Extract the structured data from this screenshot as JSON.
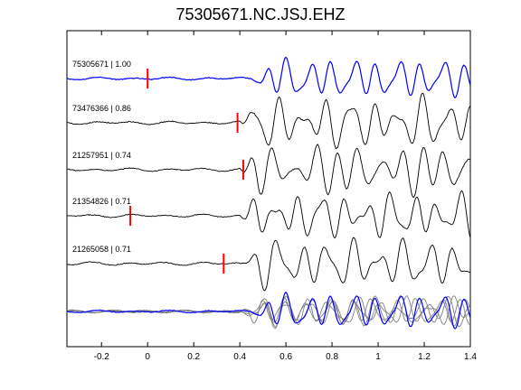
{
  "figure": {
    "title": "75305671.NC.JSJ.EHZ"
  },
  "chart_data": {
    "type": "line",
    "title": "75305671.NC.JSJ.EHZ",
    "xlabel": "",
    "ylabel": "",
    "xlim": [
      -0.35,
      1.4
    ],
    "xticks": [
      -0.2,
      0,
      0.2,
      0.4,
      0.6,
      0.8,
      1,
      1.2,
      1.4
    ],
    "xtick_labels": [
      "-0.2",
      "0",
      "0.2",
      "0.4",
      "0.6",
      "0.8",
      "1",
      "1.2",
      "1.4"
    ],
    "grid": false,
    "colors": {
      "master": "#0000ff",
      "trace": "#000000",
      "stack": "#808080",
      "pick": "#ff0000"
    },
    "traces": [
      {
        "label": "75305671 | 1.00",
        "event_id": "75305671",
        "correlation": 1.0,
        "pick_time": 0.0,
        "onset": 0.45,
        "is_master": true
      },
      {
        "label": "73476366 | 0.86",
        "event_id": "73476366",
        "correlation": 0.86,
        "pick_time": 0.39,
        "onset": 0.4,
        "is_master": false
      },
      {
        "label": "21257951 | 0.74",
        "event_id": "21257951",
        "correlation": 0.74,
        "pick_time": 0.415,
        "onset": 0.4,
        "is_master": false
      },
      {
        "label": "21354826 | 0.71",
        "event_id": "21354826",
        "correlation": 0.71,
        "pick_time": -0.075,
        "onset": 0.4,
        "is_master": false
      },
      {
        "label": "21265058 | 0.71",
        "event_id": "21265058",
        "correlation": 0.71,
        "pick_time": 0.33,
        "onset": 0.4,
        "is_master": false
      }
    ],
    "overlay": {
      "description_present": false,
      "n_gray_traces": 4,
      "includes_master": true
    }
  }
}
